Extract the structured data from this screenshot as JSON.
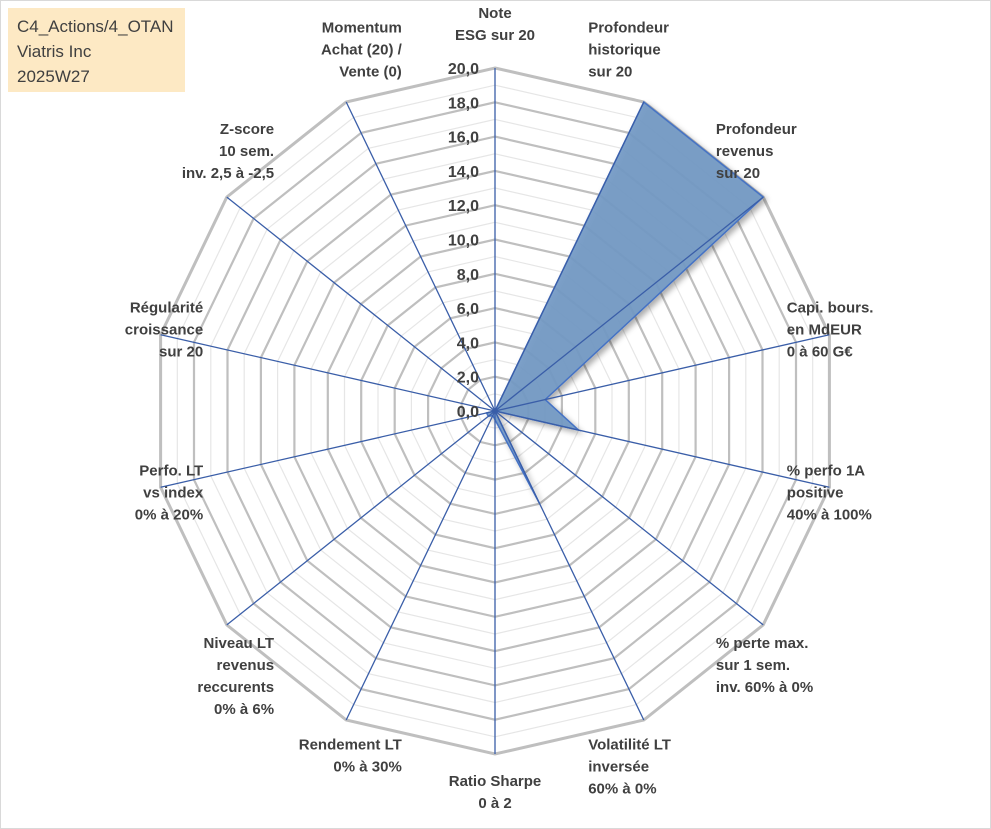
{
  "info": {
    "line1": "C4_Actions/4_OTAN",
    "line2": "Viatris Inc",
    "line3": "2025W27"
  },
  "chart_data": {
    "type": "radar",
    "rmin": 0,
    "rmax": 20,
    "tick_step": 2,
    "tick_labels": [
      "0,0",
      "2,0",
      "4,0",
      "6,0",
      "8,0",
      "10,0",
      "12,0",
      "14,0",
      "16,0",
      "18,0",
      "20,0"
    ],
    "categories": [
      [
        "Note",
        "ESG sur 20"
      ],
      [
        "Profondeur",
        "historique",
        "sur 20"
      ],
      [
        "Profondeur",
        "revenus",
        "sur 20"
      ],
      [
        "Capi. bours.",
        "en MdEUR",
        "0 à 60 G€"
      ],
      [
        "% perfo 1A",
        "positive",
        "40% à 100%"
      ],
      [
        "% perte max.",
        "sur 1 sem.",
        "inv. 60% à 0%"
      ],
      [
        "Volatilité LT",
        "inversée",
        "60% à 0%"
      ],
      [
        "Ratio Sharpe",
        "0 à 2"
      ],
      [
        "Rendement LT",
        "0% à 30%"
      ],
      [
        "Niveau LT",
        "revenus",
        "reccurents",
        "0% à 6%"
      ],
      [
        "Perfo. LT",
        "vs index",
        "0% à 20%"
      ],
      [
        "Régularité",
        "croissance",
        "sur 20"
      ],
      [
        "Z-score",
        "10 sem.",
        "inv. 2,5 à -2,5"
      ],
      [
        "Momentum",
        "Achat (20) /",
        "Vente (0)"
      ]
    ],
    "values": [
      0,
      20,
      20,
      3,
      5,
      0,
      6,
      0.5,
      0.3,
      0.5,
      0.5,
      0,
      0,
      0
    ],
    "fill_color": "#7399c4",
    "stroke_color": "#4472c4",
    "grid_color": "#bfbfbf",
    "axis_color": "#3a5ea8"
  }
}
